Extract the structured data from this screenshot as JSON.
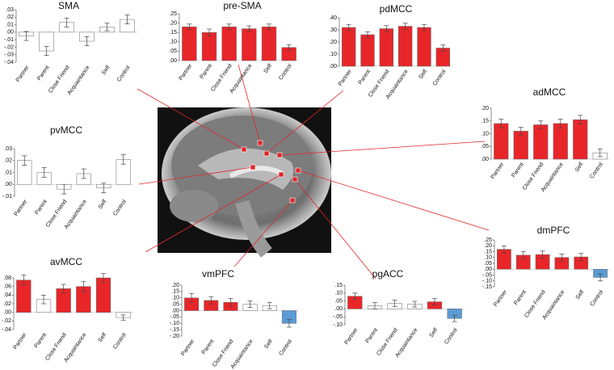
{
  "chart_data": [
    {
      "type": "bar",
      "title": "SMA",
      "categories": [
        "Partner",
        "Parent",
        "Close Friend",
        "Acquaintance",
        "Self",
        "Control"
      ],
      "values": [
        -0.005,
        -0.025,
        0.013,
        -0.012,
        0.007,
        0.017
      ],
      "errors": [
        0.006,
        0.006,
        0.006,
        0.006,
        0.005,
        0.006
      ],
      "colors": [
        "#ffffff",
        "#ffffff",
        "#ffffff",
        "#ffffff",
        "#ffffff",
        "#ffffff"
      ],
      "ylim": [
        -0.04,
        0.03
      ],
      "yticks": [
        {
          "value": 0.03,
          "label": ".03"
        },
        {
          "value": 0.02,
          "label": ".02"
        },
        {
          "value": 0.01,
          "label": ".01"
        },
        {
          "value": 0,
          "label": ".00"
        },
        {
          "value": -0.01,
          "label": "-.01"
        },
        {
          "value": -0.02,
          "label": "-.02"
        },
        {
          "value": -0.03,
          "label": "-.03"
        },
        {
          "value": -0.04,
          "label": "-.04"
        }
      ]
    },
    {
      "type": "bar",
      "title": "pre-SMA",
      "categories": [
        "Partner",
        "Parent",
        "Close Friend",
        "Acquaintance",
        "Self",
        "Control"
      ],
      "values": [
        0.18,
        0.15,
        0.18,
        0.17,
        0.18,
        0.07
      ],
      "errors": [
        0.015,
        0.018,
        0.015,
        0.015,
        0.015,
        0.015
      ],
      "colors": [
        "#e8262a",
        "#e8262a",
        "#e8262a",
        "#e8262a",
        "#e8262a",
        "#e8262a"
      ],
      "ylim": [
        0,
        0.25
      ],
      "yticks": [
        {
          "value": 0,
          "label": ".00"
        },
        {
          "value": 0.05,
          "label": ".05"
        },
        {
          "value": 0.1,
          "label": ".10"
        },
        {
          "value": 0.15,
          "label": ".15"
        },
        {
          "value": 0.2,
          "label": ".20"
        },
        {
          "value": 0.25,
          "label": ".25"
        }
      ]
    },
    {
      "type": "bar",
      "title": "pdMCC",
      "categories": [
        "Partner",
        "Parent",
        "Close Friend",
        "Acquaintance",
        "Self",
        "Control"
      ],
      "values": [
        0.32,
        0.26,
        0.31,
        0.33,
        0.32,
        0.15
      ],
      "errors": [
        0.025,
        0.025,
        0.025,
        0.025,
        0.025,
        0.025
      ],
      "colors": [
        "#e8262a",
        "#e8262a",
        "#e8262a",
        "#e8262a",
        "#e8262a",
        "#e8262a"
      ],
      "ylim": [
        0,
        0.4
      ],
      "yticks": [
        {
          "value": 0,
          "label": ".00"
        },
        {
          "value": 0.1,
          "label": ".10"
        },
        {
          "value": 0.2,
          "label": ".20"
        },
        {
          "value": 0.3,
          "label": ".30"
        },
        {
          "value": 0.4,
          "label": ".40"
        }
      ]
    },
    {
      "type": "bar",
      "title": "adMCC",
      "categories": [
        "Partner",
        "Parent",
        "Close Friend",
        "Acquaintance",
        "Self",
        "Control"
      ],
      "values": [
        0.14,
        0.11,
        0.135,
        0.14,
        0.155,
        0.025
      ],
      "errors": [
        0.017,
        0.015,
        0.015,
        0.017,
        0.017,
        0.015
      ],
      "colors": [
        "#e8262a",
        "#e8262a",
        "#e8262a",
        "#e8262a",
        "#e8262a",
        "#ffffff"
      ],
      "ylim": [
        0,
        0.2
      ],
      "yticks": [
        {
          "value": 0,
          "label": ".00"
        },
        {
          "value": 0.05,
          "label": ".05"
        },
        {
          "value": 0.1,
          "label": ".10"
        },
        {
          "value": 0.15,
          "label": ".15"
        },
        {
          "value": 0.2,
          "label": ".20"
        }
      ]
    },
    {
      "type": "bar",
      "title": "pvMCC",
      "categories": [
        "Partner",
        "Parent",
        "Close Friend",
        "Acquaintance",
        "Self",
        "Control"
      ],
      "values": [
        0.02,
        0.01,
        -0.004,
        0.009,
        -0.003,
        0.021
      ],
      "errors": [
        0.004,
        0.004,
        0.004,
        0.004,
        0.004,
        0.004
      ],
      "colors": [
        "#ffffff",
        "#ffffff",
        "#ffffff",
        "#ffffff",
        "#ffffff",
        "#ffffff"
      ],
      "ylim": [
        -0.01,
        0.03
      ],
      "yticks": [
        {
          "value": 0.03,
          "label": ".03"
        },
        {
          "value": 0.02,
          "label": ".02"
        },
        {
          "value": 0.01,
          "label": ".01"
        },
        {
          "value": 0,
          "label": ".00"
        },
        {
          "value": -0.01,
          "label": "-.01"
        }
      ]
    },
    {
      "type": "bar",
      "title": "dmPFC",
      "categories": [
        "Partner",
        "Parent",
        "Close Friend",
        "Acquaintance",
        "Self",
        "Control"
      ],
      "values": [
        0.17,
        0.12,
        0.125,
        0.1,
        0.105,
        -0.07
      ],
      "errors": [
        0.03,
        0.03,
        0.03,
        0.03,
        0.03,
        0.03
      ],
      "colors": [
        "#e8262a",
        "#e8262a",
        "#e8262a",
        "#e8262a",
        "#e8262a",
        "#5b9bd5"
      ],
      "ylim": [
        -0.15,
        0.25
      ],
      "yticks": [
        {
          "value": 0.25,
          "label": ".25"
        },
        {
          "value": 0.2,
          "label": ".20"
        },
        {
          "value": 0.15,
          "label": ".15"
        },
        {
          "value": 0.1,
          "label": ".10"
        },
        {
          "value": 0.05,
          "label": ".05"
        },
        {
          "value": 0,
          "label": ".00"
        },
        {
          "value": -0.05,
          "label": "-.05"
        },
        {
          "value": -0.1,
          "label": "-.10"
        },
        {
          "value": -0.15,
          "label": "-.15"
        }
      ]
    },
    {
      "type": "bar",
      "title": "avMCC",
      "categories": [
        "Partner",
        "Parent",
        "Close Friend",
        "Acquaintance",
        "Self",
        "Control"
      ],
      "values": [
        0.075,
        0.03,
        0.055,
        0.06,
        0.08,
        -0.012
      ],
      "errors": [
        0.012,
        0.01,
        0.01,
        0.012,
        0.01,
        0.006
      ],
      "colors": [
        "#e8262a",
        "#ffffff",
        "#e8262a",
        "#e8262a",
        "#e8262a",
        "#ffffff"
      ],
      "ylim": [
        -0.04,
        0.08
      ],
      "yticks": [
        {
          "value": 0.08,
          "label": ".08"
        },
        {
          "value": 0.06,
          "label": ".06"
        },
        {
          "value": 0.04,
          "label": ".04"
        },
        {
          "value": 0.02,
          "label": ".02"
        },
        {
          "value": 0,
          "label": ".00"
        },
        {
          "value": -0.02,
          "label": "-.02"
        },
        {
          "value": -0.04,
          "label": "-.04"
        }
      ]
    },
    {
      "type": "bar",
      "title": "vmPFC",
      "categories": [
        "Partner",
        "Parent",
        "Close Friend",
        "Acquaintance",
        "Self",
        "Control"
      ],
      "values": [
        0.1,
        0.08,
        0.065,
        0.05,
        0.04,
        -0.1
      ],
      "errors": [
        0.035,
        0.03,
        0.03,
        0.025,
        0.025,
        0.03
      ],
      "colors": [
        "#e8262a",
        "#e8262a",
        "#e8262a",
        "#ffffff",
        "#ffffff",
        "#5b9bd5"
      ],
      "ylim": [
        -0.2,
        0.2
      ],
      "yticks": [
        {
          "value": 0.2,
          "label": ".20"
        },
        {
          "value": 0.15,
          "label": ".15"
        },
        {
          "value": 0.1,
          "label": ".10"
        },
        {
          "value": 0.05,
          "label": ".05"
        },
        {
          "value": 0,
          "label": ".00"
        },
        {
          "value": -0.05,
          "label": "-.05"
        },
        {
          "value": -0.1,
          "label": "-.10"
        },
        {
          "value": -0.15,
          "label": "-.15"
        },
        {
          "value": -0.2,
          "label": "-.20"
        }
      ]
    },
    {
      "type": "bar",
      "title": "pgACC",
      "categories": [
        "Partner",
        "Parent",
        "Close Friend",
        "Acquaintance",
        "Self",
        "Control"
      ],
      "values": [
        0.08,
        0.02,
        0.035,
        0.03,
        0.045,
        -0.06
      ],
      "errors": [
        0.02,
        0.02,
        0.02,
        0.018,
        0.02,
        0.02
      ],
      "colors": [
        "#e8262a",
        "#ffffff",
        "#ffffff",
        "#ffffff",
        "#e8262a",
        "#5b9bd5"
      ],
      "ylim": [
        -0.1,
        0.15
      ],
      "yticks": [
        {
          "value": 0.15,
          "label": ".15"
        },
        {
          "value": 0.1,
          "label": ".10"
        },
        {
          "value": 0.05,
          "label": ".05"
        },
        {
          "value": 0,
          "label": ".00"
        },
        {
          "value": -0.05,
          "label": "-.05"
        },
        {
          "value": -0.1,
          "label": "-.10"
        }
      ]
    }
  ]
}
